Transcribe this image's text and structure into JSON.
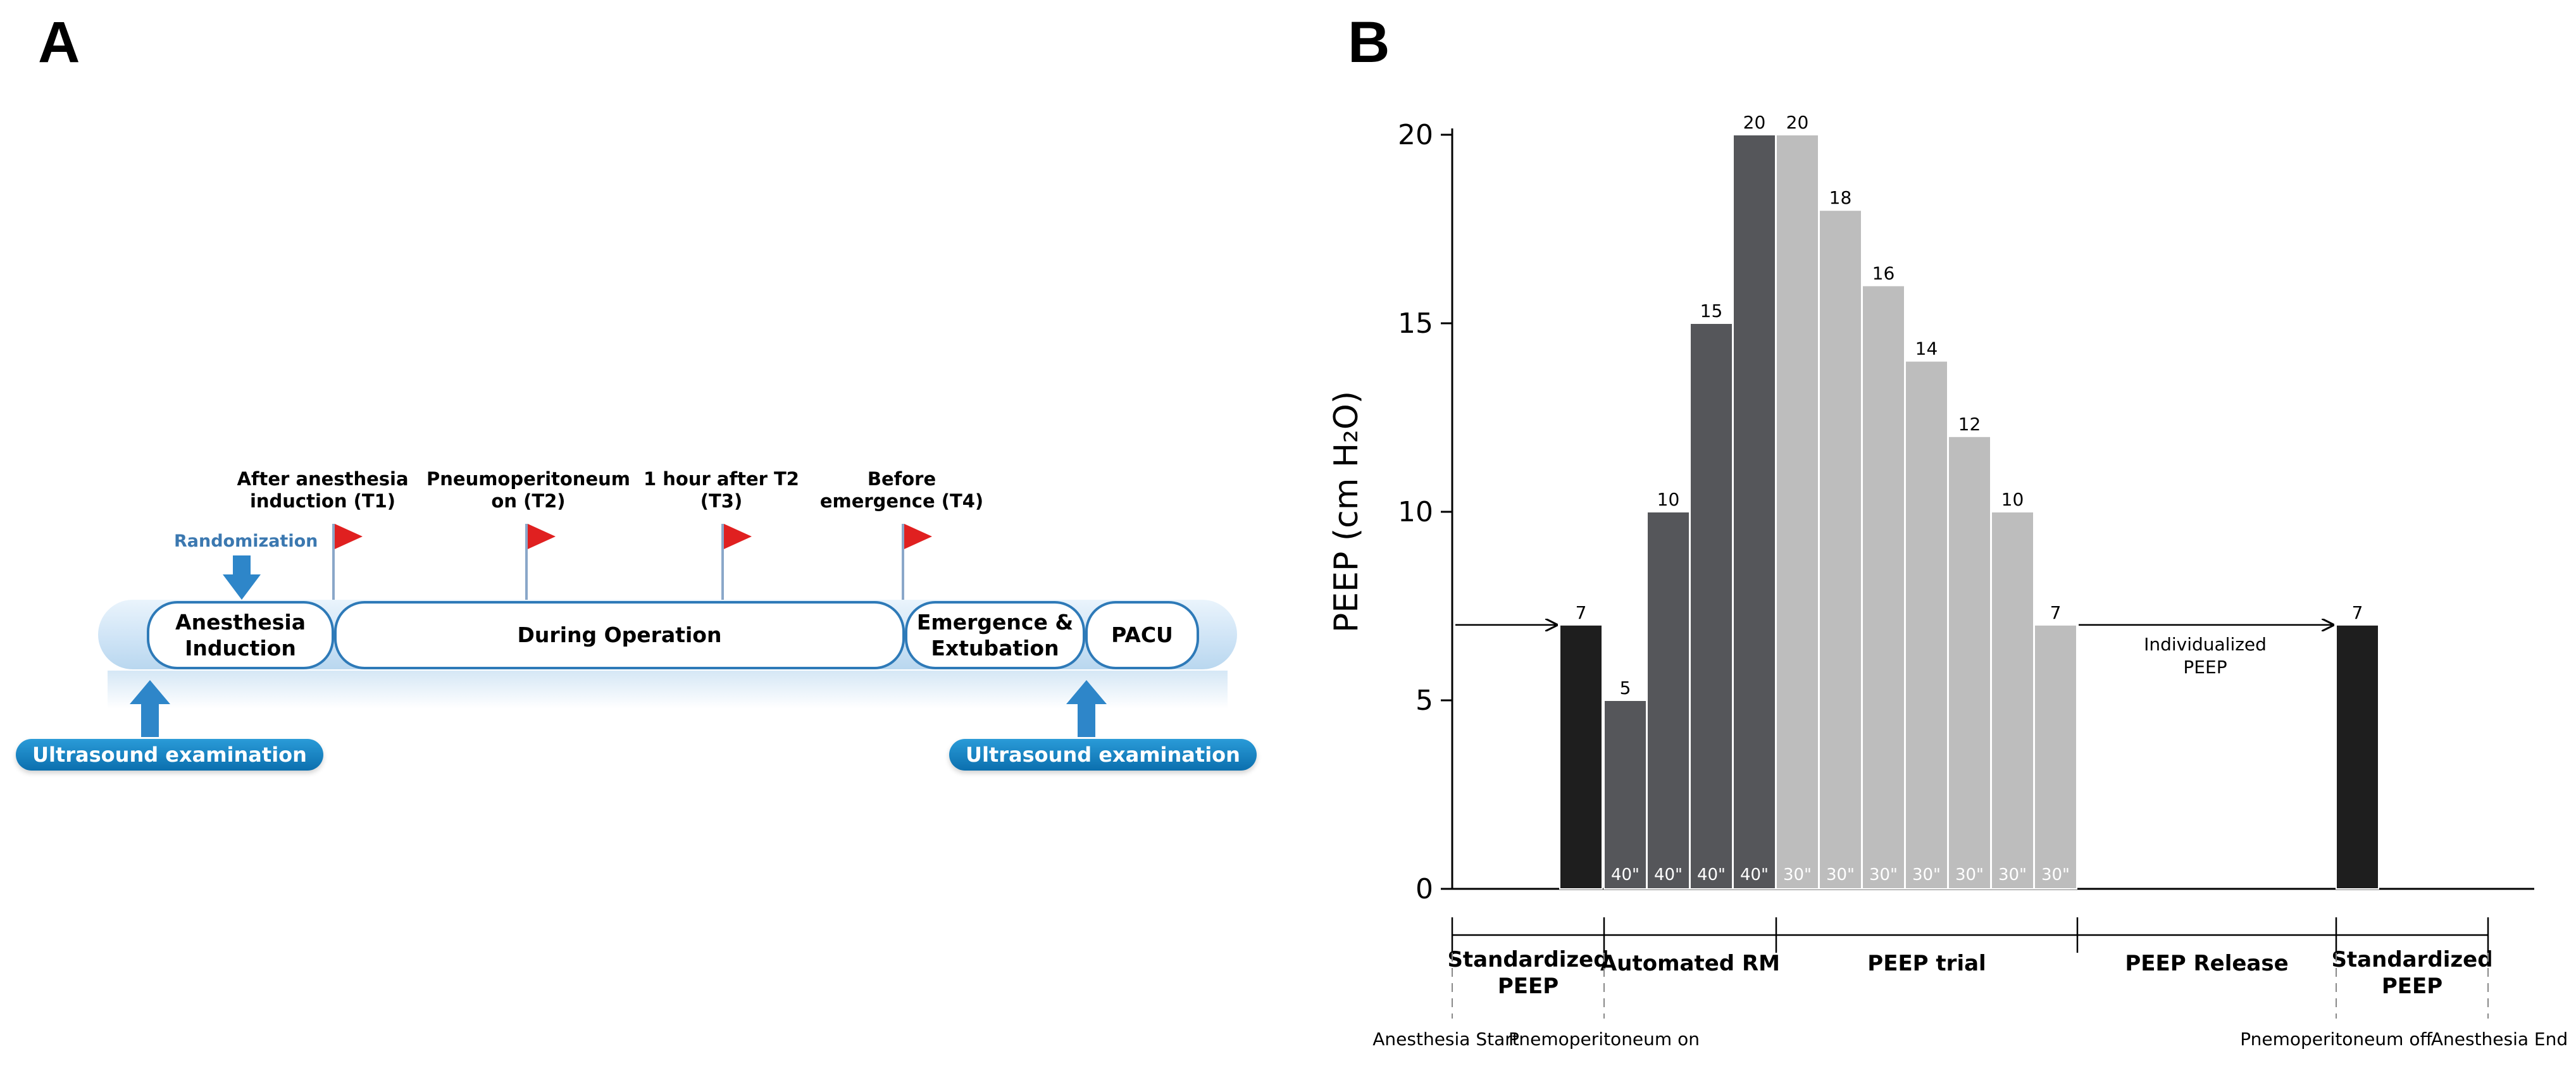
{
  "panelA": {
    "label": "A",
    "randomization": "Randomization",
    "timepoints": [
      {
        "label_line1": "After anesthesia",
        "label_line2": "induction (T1)"
      },
      {
        "label_line1": "Pneumoperitoneum",
        "label_line2": "on (T2)"
      },
      {
        "label_line1": "1 hour after T2",
        "label_line2": "(T3)"
      },
      {
        "label_line1": "Before",
        "label_line2": "emergence (T4)"
      }
    ],
    "phases": [
      {
        "line1": "Anesthesia",
        "line2": "Induction"
      },
      {
        "line1": "During Operation",
        "line2": ""
      },
      {
        "line1": "Emergence &",
        "line2": "Extubation"
      },
      {
        "line1": "PACU",
        "line2": ""
      }
    ],
    "ultrasound_left": "Ultrasound examination",
    "ultrasound_right": "Ultrasound examination",
    "colors": {
      "flag": "#e02020",
      "badge": "#0b6fae",
      "border": "#2e7ab8"
    }
  },
  "panelB": {
    "label": "B",
    "chart_data": {
      "type": "bar",
      "ylabel": "PEEP (cm H₂O)",
      "ylim": [
        0,
        20
      ],
      "yticks": [
        0,
        5,
        10,
        15,
        20
      ],
      "ytick_labels": [
        "0",
        "5",
        "10",
        "15",
        "20"
      ],
      "bars": [
        {
          "value": 7,
          "label": "7",
          "duration": "",
          "group": "standardized"
        },
        {
          "value": 5,
          "label": "5",
          "duration": "40\"",
          "group": "rm"
        },
        {
          "value": 10,
          "label": "10",
          "duration": "40\"",
          "group": "rm"
        },
        {
          "value": 15,
          "label": "15",
          "duration": "40\"",
          "group": "rm"
        },
        {
          "value": 20,
          "label": "20",
          "duration": "40\"",
          "group": "rm"
        },
        {
          "value": 20,
          "label": "20",
          "duration": "30\"",
          "group": "trial"
        },
        {
          "value": 18,
          "label": "18",
          "duration": "30\"",
          "group": "trial"
        },
        {
          "value": 16,
          "label": "16",
          "duration": "30\"",
          "group": "trial"
        },
        {
          "value": 14,
          "label": "14",
          "duration": "30\"",
          "group": "trial"
        },
        {
          "value": 12,
          "label": "12",
          "duration": "30\"",
          "group": "trial"
        },
        {
          "value": 10,
          "label": "10",
          "duration": "30\"",
          "group": "trial"
        },
        {
          "value": 7,
          "label": "7",
          "duration": "30\"",
          "group": "trial"
        },
        {
          "value": 7,
          "label": "7",
          "duration": "",
          "group": "standardized"
        }
      ],
      "individualized_label_line1": "Individualized",
      "individualized_label_line2": "PEEP",
      "phases": [
        {
          "line1": "Standardized",
          "line2": "PEEP"
        },
        {
          "line1": "Automated RM",
          "line2": ""
        },
        {
          "line1": "PEEP trial",
          "line2": ""
        },
        {
          "line1": "PEEP Release",
          "line2": ""
        },
        {
          "line1": "Standardized",
          "line2": "PEEP"
        }
      ],
      "events": [
        "Anesthesia Start",
        "Pnemoperitoneum on",
        "Pnemoperitoneum off",
        "Anesthesia End"
      ],
      "colors": {
        "standardized": "#1e1e1e",
        "rm": "#55565a",
        "trial": "#bdbdbd"
      }
    }
  }
}
